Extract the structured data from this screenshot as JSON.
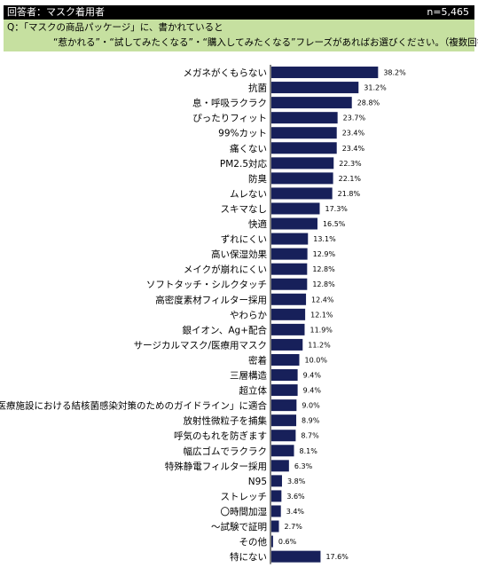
{
  "header": {
    "respondent": "回答者：マスク着用者",
    "n": "n=5,465"
  },
  "question": {
    "line1": "Q：「マスクの商品パッケージ」に、書かれていると",
    "line2": "“惹かれる”・“試してみたくなる”・“購入してみたくなる”フレーズがあればお選びください。（複数回答）"
  },
  "chart_data": {
    "type": "bar",
    "orientation": "horizontal",
    "categories": [
      "メガネがくもらない",
      "抗菌",
      "息・呼吸ラクラク",
      "ぴったりフィット",
      "99%カット",
      "痛くない",
      "PM2.5対応",
      "防臭",
      "ムレない",
      "スキマなし",
      "快適",
      "ずれにくい",
      "高い保湿効果",
      "メイクが崩れにくい",
      "ソフトタッチ・シルクタッチ",
      "高密度素材フィルター採用",
      "やわらか",
      "銀イオン、Ag+配合",
      "サージカルマスク/医療用マスク",
      "密着",
      "三層構造",
      "超立体",
      "「医療施設における結核菌感染対策のためのガイドライン」に適合",
      "放射性微粒子を捕集",
      "呼気のもれを防ぎます",
      "幅広ゴムでラクラク",
      "特殊静電フィルター採用",
      "N95",
      "ストレッチ",
      "〇時間加湿",
      "～試験で証明",
      "その他",
      "特にない"
    ],
    "values": [
      38.2,
      31.2,
      28.8,
      23.7,
      23.4,
      23.4,
      22.3,
      22.1,
      21.8,
      17.3,
      16.5,
      13.1,
      12.9,
      12.8,
      12.8,
      12.4,
      12.1,
      11.9,
      11.2,
      10.0,
      9.4,
      9.4,
      9.0,
      8.9,
      8.7,
      8.1,
      6.3,
      3.8,
      3.6,
      3.4,
      2.7,
      0.6,
      17.6
    ],
    "value_labels": [
      "38.2%",
      "31.2%",
      "28.8%",
      "23.7%",
      "23.4%",
      "23.4%",
      "22.3%",
      "22.1%",
      "21.8%",
      "17.3%",
      "16.5%",
      "13.1%",
      "12.9%",
      "12.8%",
      "12.8%",
      "12.4%",
      "12.1%",
      "11.9%",
      "11.2%",
      "10.0%",
      "9.4%",
      "9.4%",
      "9.0%",
      "8.9%",
      "8.7%",
      "8.1%",
      "6.3%",
      "3.8%",
      "3.6%",
      "3.4%",
      "2.7%",
      "0.6%",
      "17.6%"
    ],
    "xlim": [
      0,
      45
    ],
    "bar_color": "#17205a"
  }
}
